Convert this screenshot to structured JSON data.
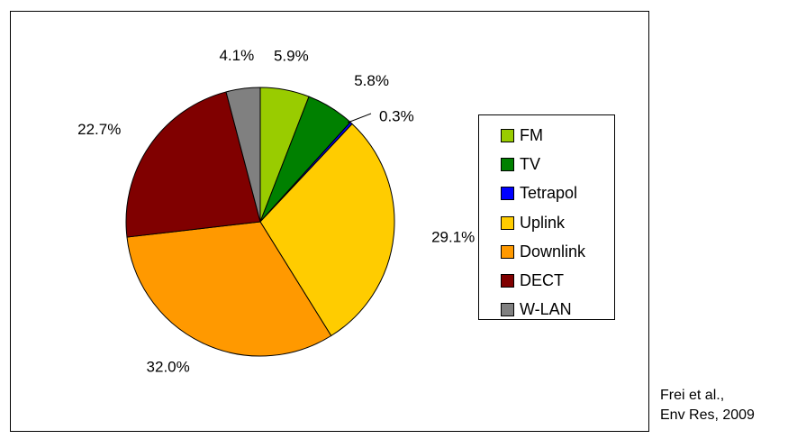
{
  "chart_data": {
    "type": "pie",
    "title": "",
    "labels": [
      "FM",
      "TV",
      "Tetrapol",
      "Uplink",
      "Downlink",
      "DECT",
      "W-LAN"
    ],
    "values": [
      5.9,
      5.8,
      0.3,
      29.1,
      32.0,
      22.7,
      4.1
    ],
    "value_labels": [
      "5.9%",
      "5.8%",
      "0.3%",
      "29.1%",
      "32.0%",
      "22.7%",
      "4.1%"
    ],
    "colors": [
      "#99CC00",
      "#008000",
      "#0000FF",
      "#FFCC00",
      "#FF9900",
      "#800000",
      "#808080"
    ],
    "start": "12 o'clock",
    "direction": "clockwise",
    "legend_position": "right"
  },
  "source": {
    "line1": "Frei et al.,",
    "line2": "Env Res, 2009"
  }
}
